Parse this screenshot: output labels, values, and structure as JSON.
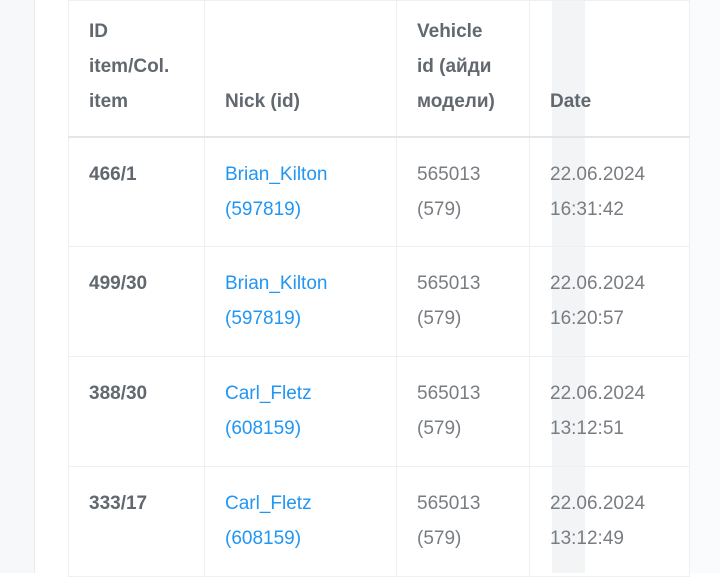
{
  "colors": {
    "link_blue": "#2196f3",
    "header_text": "#62686f",
    "body_text": "#797d82",
    "cell_border": "#edeff2",
    "page_margin_bg": "#f7f8fa",
    "date_stripe_bg": "#f3f4f6"
  },
  "table": {
    "columns": [
      {
        "label": "ID item/Col. item"
      },
      {
        "label": "Nick (id)"
      },
      {
        "label": "Vehicle id (айди модели)"
      },
      {
        "label": "Date"
      }
    ],
    "rows": [
      {
        "item_id": "466/1",
        "nick": "Brian_Kilton",
        "nick_account_id": "(597819)",
        "vehicle_id": "565013",
        "vehicle_model_id": "(579)",
        "date": "22.06.2024",
        "time": "16:31:42"
      },
      {
        "item_id": "499/30",
        "nick": "Brian_Kilton",
        "nick_account_id": "(597819)",
        "vehicle_id": "565013",
        "vehicle_model_id": "(579)",
        "date": "22.06.2024",
        "time": "16:20:57"
      },
      {
        "item_id": "388/30",
        "nick": "Carl_Fletz",
        "nick_account_id": "(608159)",
        "vehicle_id": "565013",
        "vehicle_model_id": "(579)",
        "date": "22.06.2024",
        "time": "13:12:51"
      },
      {
        "item_id": "333/17",
        "nick": "Carl_Fletz",
        "nick_account_id": "(608159)",
        "vehicle_id": "565013",
        "vehicle_model_id": "(579)",
        "date": "22.06.2024",
        "time": "13:12:49"
      }
    ]
  }
}
